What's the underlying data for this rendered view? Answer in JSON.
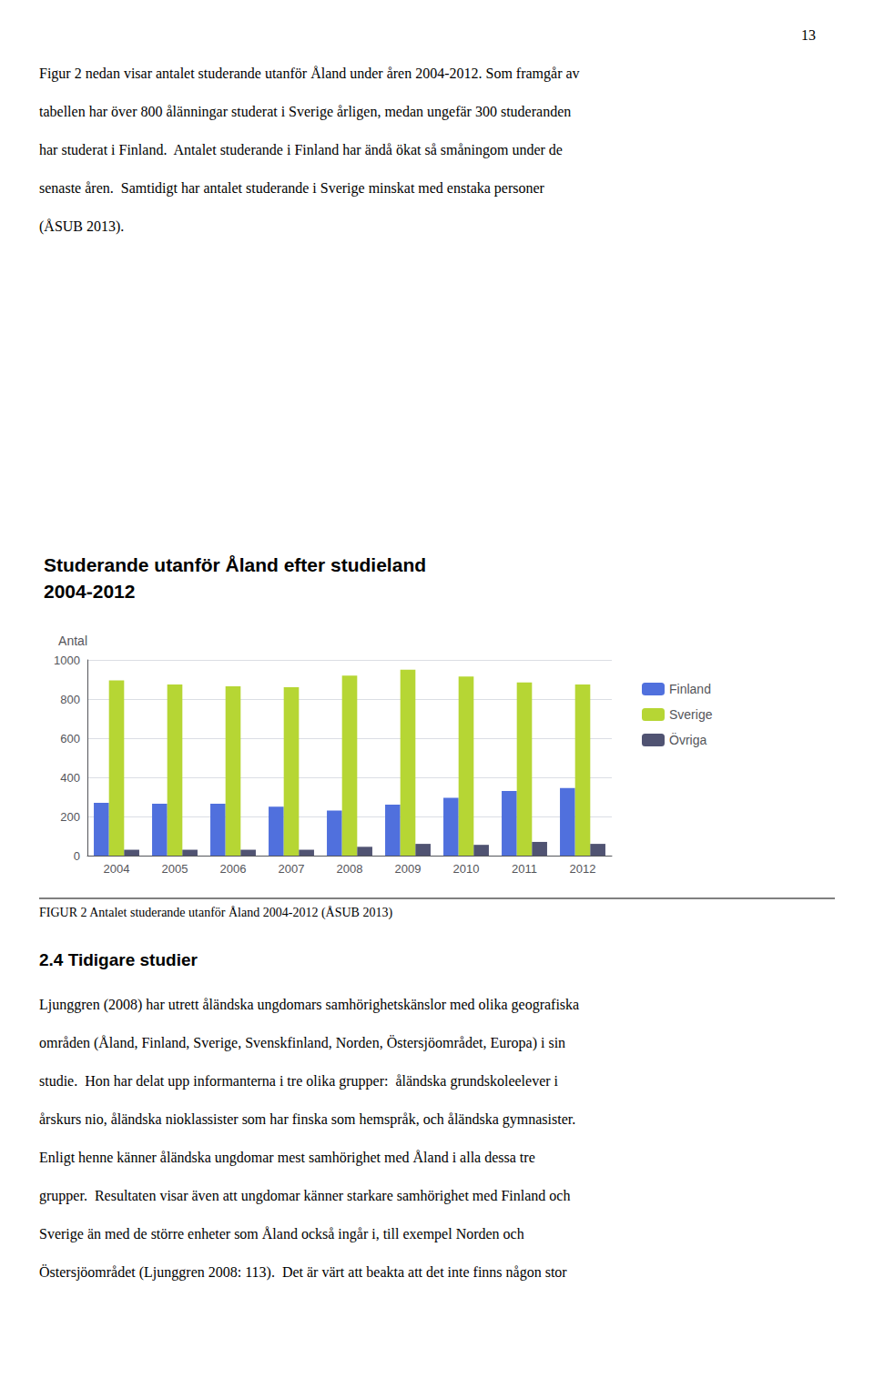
{
  "chart_data": {
    "type": "bar",
    "title": "Studerande utanför Åland efter studieland",
    "subtitle": "2004-2012",
    "y_label": "Antal",
    "categories": [
      "2004",
      "2005",
      "2006",
      "2007",
      "2008",
      "2009",
      "2010",
      "2011",
      "2012"
    ],
    "series": [
      {
        "name": "Finland",
        "values": [
          270,
          265,
          265,
          250,
          230,
          260,
          295,
          330,
          345
        ]
      },
      {
        "name": "Sverige",
        "values": [
          895,
          875,
          865,
          860,
          920,
          950,
          915,
          885,
          875
        ]
      },
      {
        "name": "Övriga",
        "values": [
          30,
          30,
          30,
          30,
          45,
          60,
          55,
          70,
          60
        ]
      }
    ],
    "ylim": [
      0,
      1000
    ],
    "yticks": [
      0,
      200,
      400,
      600,
      800,
      1000
    ],
    "grid": true,
    "legend": "right",
    "annotations": [
      "13",
      "Figur 2 nedan visar antalet studerande utanför Åland under åren 2004-2012. Som framgår av",
      "tabellen har över 800 ålänningar studerat i Sverige årligen, medan ungefär 300 studeranden",
      "har studerat i Finland.  Antalet studerande i Finland har ändå ökat så småningom under de",
      "senaste åren.  Samtidigt har antalet studerande i Sverige minskat med enstaka personer",
      "(ÅSUB 2013).",
      "FIGUR 2 Antalet studerande utanför Åland 2004-2012 (ÅSUB 2013)",
      "2.4 Tidigare studier",
      "Ljunggren (2008) har utrett åländska ungdomars samhörighetskänslor med olika geografiska",
      "områden (Åland, Finland, Sverige, Svenskfinland, Norden, Östersjöområdet, Europa) i sin",
      "studie.  Hon har delat upp informanterna i tre olika grupper:  åländska grundskoleelever i",
      "årskurs nio, åländska nioklassister som har finska som hemspråk, och åländska gymnasister.",
      "Enligt henne känner åländska ungdomar mest samhörighet med Åland i alla dessa tre",
      "grupper.  Resultaten visar även att ungdomar känner starkare samhörighet med Finland och",
      "Sverige än med de större enheter som Åland också ingår i, till exempel Norden och",
      "Östersjöområdet (Ljunggren 2008: 113).  Det är värt att beakta att det inte finns någon stor"
    ]
  }
}
